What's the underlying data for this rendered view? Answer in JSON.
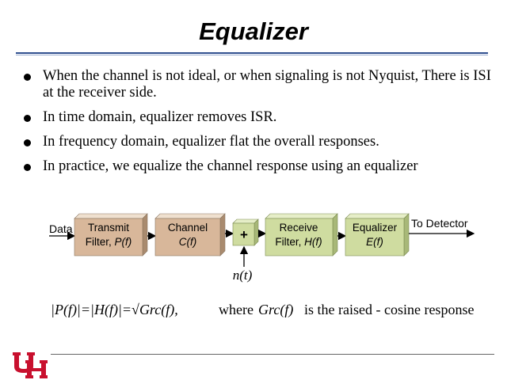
{
  "slide": {
    "title": "Equalizer",
    "bullets": [
      "When the channel is not ideal, or when signaling is not Nyquist, There is ISI at the receiver side.",
      "In time domain, equalizer removes ISR.",
      "In frequency domain, equalizer flat the overall responses.",
      "In practice, we equalize the channel response using an equalizer"
    ]
  },
  "diagram": {
    "input_label": "Data",
    "output_label": "To Detector",
    "noise_label": "n(t)",
    "adder_symbol": "+",
    "blocks": [
      {
        "line1": "Transmit",
        "line2_prefix": "Filter, ",
        "line2_fn": "P(f)",
        "color": "#d8b79a"
      },
      {
        "line1": "Channel",
        "line2_prefix": "",
        "line2_fn": "C(f)",
        "color": "#d8b79a"
      },
      {
        "line1": "Receive",
        "line2_prefix": "Filter, ",
        "line2_fn": "H(f)",
        "color": "#cfdca0"
      },
      {
        "line1": "Equalizer",
        "line2_prefix": "",
        "line2_fn": "E(f)",
        "color": "#cfdca0"
      }
    ]
  },
  "formula": {
    "lhs": "|P(f)|=|H(f)|=√Grc(f),",
    "rhs_prefix": "where",
    "rhs_symbol": "Grc(f)",
    "rhs_suffix": "is the raised - cosine response"
  },
  "logo": {
    "text": "UH",
    "color": "#c8102e"
  }
}
